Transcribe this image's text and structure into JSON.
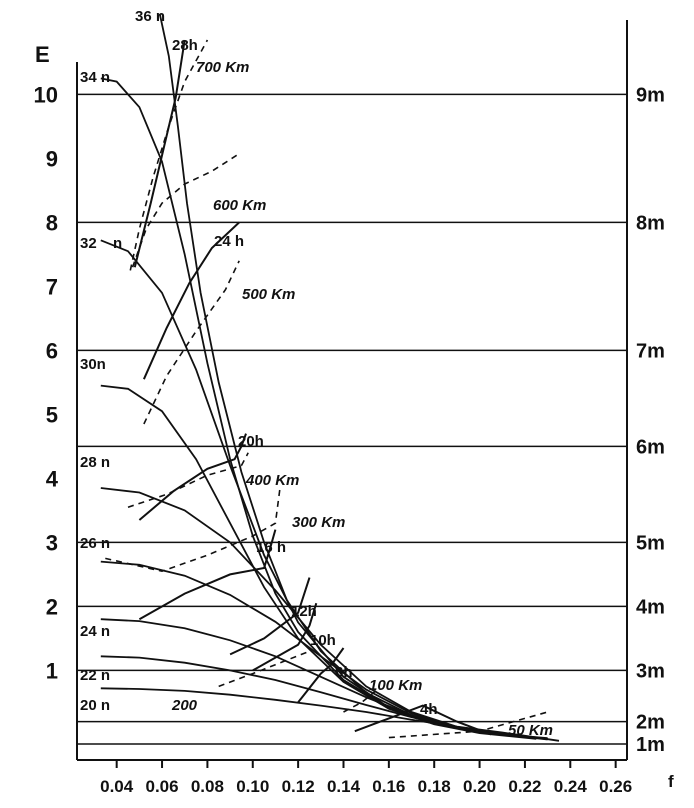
{
  "chart_data": {
    "type": "line",
    "title": "",
    "xlabel": "f",
    "ylabel": "E",
    "xlim": [
      0.03,
      0.265
    ],
    "ylim": [
      -0.4,
      10.6
    ],
    "grid": false,
    "x_ticks": [
      "0.04",
      "0.06",
      "0.08",
      "0.10",
      "0.12",
      "0.14",
      "0.16",
      "0.18",
      "0.20",
      "0.22",
      "0.24",
      "0.26"
    ],
    "y_ticks_left": [
      "1",
      "2",
      "3",
      "4",
      "5",
      "6",
      "7",
      "8",
      "9",
      "10"
    ],
    "height_lines": [
      {
        "label": "1m",
        "E": -0.15
      },
      {
        "label": "2m",
        "E": 0.2
      },
      {
        "label": "3m",
        "E": 1.0
      },
      {
        "label": "4m",
        "E": 2.0
      },
      {
        "label": "5m",
        "E": 3.0
      },
      {
        "label": "6m",
        "E": 4.5
      },
      {
        "label": "7m",
        "E": 6.0
      },
      {
        "label": "8m",
        "E": 8.0
      },
      {
        "label": "9m",
        "E": 10.0
      }
    ],
    "wind_speed_curves": [
      {
        "label": "20 n",
        "x": [
          0.033,
          0.05,
          0.07,
          0.09,
          0.11,
          0.13,
          0.15,
          0.17,
          0.19,
          0.21,
          0.235
        ],
        "y": [
          0.72,
          0.71,
          0.68,
          0.62,
          0.54,
          0.45,
          0.35,
          0.23,
          0.12,
          0.03,
          -0.1
        ]
      },
      {
        "label": "22 n",
        "x": [
          0.033,
          0.05,
          0.07,
          0.09,
          0.11,
          0.13,
          0.15,
          0.17,
          0.19,
          0.21,
          0.23
        ],
        "y": [
          1.22,
          1.2,
          1.12,
          1.0,
          0.85,
          0.66,
          0.46,
          0.27,
          0.1,
          0.0,
          -0.08
        ]
      },
      {
        "label": "24 n",
        "x": [
          0.033,
          0.05,
          0.07,
          0.09,
          0.11,
          0.13,
          0.15,
          0.17,
          0.19,
          0.21,
          0.23
        ],
        "y": [
          1.8,
          1.77,
          1.66,
          1.47,
          1.22,
          0.9,
          0.58,
          0.3,
          0.1,
          0.0,
          -0.07
        ]
      },
      {
        "label": "26 n",
        "x": [
          0.033,
          0.05,
          0.07,
          0.09,
          0.11,
          0.13,
          0.15,
          0.17,
          0.19,
          0.21,
          0.23
        ],
        "y": [
          2.7,
          2.65,
          2.48,
          2.18,
          1.76,
          1.22,
          0.7,
          0.33,
          0.1,
          0.0,
          -0.07
        ]
      },
      {
        "label": "28 n",
        "x": [
          0.033,
          0.05,
          0.07,
          0.09,
          0.11,
          0.13,
          0.15,
          0.17,
          0.19,
          0.21,
          0.23
        ],
        "y": [
          3.85,
          3.78,
          3.5,
          3.0,
          2.25,
          1.4,
          0.75,
          0.35,
          0.12,
          0.0,
          -0.06
        ]
      },
      {
        "label": "30 n",
        "x": [
          0.033,
          0.045,
          0.06,
          0.075,
          0.09,
          0.105,
          0.12,
          0.14,
          0.16,
          0.18,
          0.2,
          0.225
        ],
        "y": [
          5.45,
          5.4,
          5.05,
          4.3,
          3.3,
          2.3,
          1.5,
          0.82,
          0.4,
          0.16,
          0.02,
          -0.07
        ]
      },
      {
        "label": "32 n",
        "x": [
          0.033,
          0.045,
          0.06,
          0.075,
          0.09,
          0.105,
          0.12,
          0.14,
          0.16,
          0.18,
          0.2,
          0.225
        ],
        "y": [
          7.72,
          7.55,
          6.9,
          5.7,
          4.2,
          2.8,
          1.75,
          0.9,
          0.42,
          0.17,
          0.03,
          -0.06
        ]
      },
      {
        "label": "34 n",
        "x": [
          0.033,
          0.04,
          0.05,
          0.06,
          0.07,
          0.08,
          0.09,
          0.1,
          0.11,
          0.12,
          0.14,
          0.16,
          0.18,
          0.2,
          0.225
        ],
        "y": [
          10.25,
          10.2,
          9.8,
          8.95,
          7.5,
          5.8,
          4.3,
          3.1,
          2.2,
          1.6,
          0.85,
          0.42,
          0.18,
          0.04,
          -0.05
        ]
      },
      {
        "label": "36 n",
        "x": [
          0.059,
          0.063,
          0.067,
          0.071,
          0.077,
          0.085,
          0.095,
          0.105,
          0.115,
          0.13,
          0.15,
          0.17,
          0.19,
          0.22
        ],
        "y": [
          11.4,
          10.6,
          9.5,
          8.3,
          6.9,
          5.5,
          4.1,
          3.0,
          2.1,
          1.3,
          0.65,
          0.3,
          0.1,
          -0.04
        ]
      }
    ],
    "duration_lines": [
      {
        "label": "4h",
        "x": [
          0.145,
          0.16,
          0.175,
          0.19,
          0.205
        ],
        "y": [
          0.05,
          0.25,
          0.45,
          0.2,
          0.0
        ]
      },
      {
        "label": "6h",
        "x": [
          0.12,
          0.13,
          0.135,
          0.14
        ],
        "y": [
          0.5,
          0.95,
          1.1,
          1.35
        ]
      },
      {
        "label": "10h",
        "x": [
          0.1,
          0.11,
          0.12,
          0.125,
          0.128
        ],
        "y": [
          1.0,
          1.2,
          1.4,
          1.7,
          2.05
        ]
      },
      {
        "label": "12h",
        "x": [
          0.09,
          0.105,
          0.12,
          0.125
        ],
        "y": [
          1.25,
          1.5,
          1.9,
          2.45
        ]
      },
      {
        "label": "16h",
        "x": [
          0.05,
          0.07,
          0.09,
          0.105,
          0.108,
          0.11
        ],
        "y": [
          1.8,
          2.2,
          2.5,
          2.6,
          2.95,
          3.2
        ]
      },
      {
        "label": "20h",
        "x": [
          0.05,
          0.065,
          0.08,
          0.092,
          0.095,
          0.097
        ],
        "y": [
          3.35,
          3.8,
          4.15,
          4.3,
          4.5,
          4.7
        ]
      },
      {
        "label": "24h",
        "x": [
          0.052,
          0.062,
          0.072,
          0.082,
          0.094
        ],
        "y": [
          5.55,
          6.35,
          7.05,
          7.6,
          8.0
        ]
      },
      {
        "label": "28h",
        "x": [
          0.048,
          0.055,
          0.061,
          0.066,
          0.07
        ],
        "y": [
          7.3,
          8.3,
          9.2,
          9.95,
          10.85
        ]
      }
    ],
    "fetch_lines": [
      {
        "label": "50 Km",
        "x": [
          0.16,
          0.2,
          0.23
        ],
        "y": [
          -0.05,
          0.05,
          0.35
        ]
      },
      {
        "label": "100 Km",
        "x": [
          0.14,
          0.148,
          0.155
        ],
        "y": [
          0.35,
          0.5,
          0.7
        ]
      },
      {
        "label": "200",
        "x": [
          0.085,
          0.1,
          0.125
        ],
        "y": [
          0.75,
          0.95,
          1.3
        ]
      },
      {
        "label": "300 Km",
        "x": [
          0.035,
          0.06,
          0.08,
          0.1,
          0.11,
          0.112
        ],
        "y": [
          2.75,
          2.55,
          2.8,
          3.1,
          3.3,
          3.85
        ]
      },
      {
        "label": "400 Km",
        "x": [
          0.045,
          0.062,
          0.08,
          0.095,
          0.098
        ],
        "y": [
          3.55,
          3.75,
          4.05,
          4.2,
          4.4
        ]
      },
      {
        "label": "500 Km",
        "x": [
          0.052,
          0.062,
          0.075,
          0.088,
          0.094
        ],
        "y": [
          4.85,
          5.6,
          6.3,
          6.95,
          7.4
        ]
      },
      {
        "label": "600 Km",
        "x": [
          0.047,
          0.053,
          0.06,
          0.07,
          0.082,
          0.093
        ],
        "y": [
          7.3,
          7.9,
          8.3,
          8.6,
          8.8,
          9.05
        ]
      },
      {
        "label": "700 Km",
        "x": [
          0.046,
          0.05,
          0.056,
          0.063,
          0.07,
          0.08
        ],
        "y": [
          7.25,
          7.9,
          8.7,
          9.5,
          10.2,
          10.85
        ]
      }
    ]
  },
  "labels": {
    "curve_labels": [
      "20 n",
      "22 n",
      "24 n",
      "26 n",
      "28 n",
      "30n",
      "32",
      "n",
      "34 n",
      "36 n"
    ],
    "duration_labels": [
      "4h",
      "6h",
      "10h",
      "12h",
      "16 h",
      "20h",
      "24 h",
      "28h"
    ],
    "fetch_labels": [
      "50 Km",
      "100 Km",
      "200",
      "300 Km",
      "400 Km",
      "500 Km",
      "600 Km",
      "700 Km"
    ]
  }
}
